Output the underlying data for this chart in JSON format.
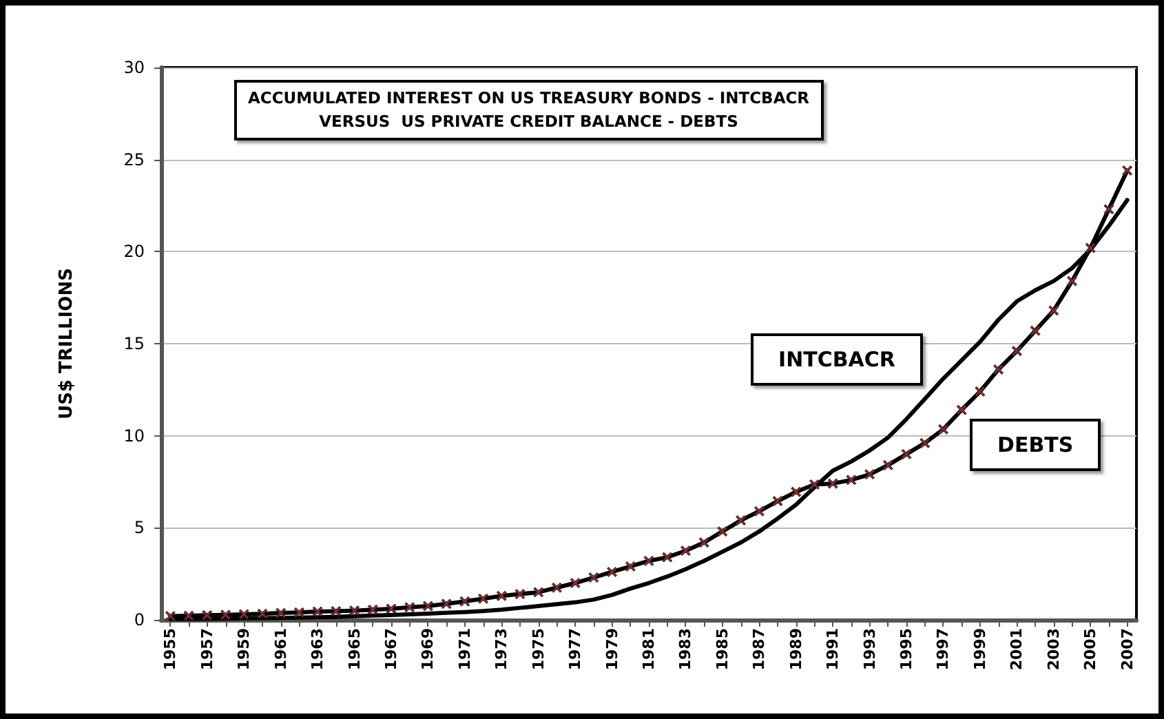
{
  "chart_data": {
    "type": "line",
    "title": "ACCUMULATED INTEREST ON US TREASURY BONDS - INTCBACR\nVERSUS  US PRIVATE CREDIT BALANCE - DEBTS",
    "ylabel": "US$ TRILLIONS",
    "categories": [
      "1955",
      null,
      "1957",
      null,
      "1959",
      null,
      "1961",
      null,
      "1963",
      null,
      "1965",
      null,
      "1967",
      null,
      "1969",
      null,
      "1971",
      null,
      "1973",
      null,
      "1975",
      null,
      "1977",
      null,
      "1979",
      null,
      "1981",
      null,
      "1983",
      null,
      "1985",
      null,
      "1987",
      null,
      "1989",
      null,
      "1991",
      null,
      "1993",
      null,
      "1995",
      null,
      "1997",
      null,
      "1999",
      null,
      "2001",
      null,
      "2003",
      null,
      "2005",
      null,
      "2007"
    ],
    "series": [
      {
        "name": "INTCBACR",
        "color": "#000000",
        "marker": "none",
        "values": [
          0.05,
          0.05,
          0.06,
          0.07,
          0.08,
          0.09,
          0.1,
          0.12,
          0.14,
          0.16,
          0.2,
          0.23,
          0.26,
          0.3,
          0.34,
          0.38,
          0.42,
          0.48,
          0.55,
          0.65,
          0.75,
          0.85,
          0.95,
          1.1,
          1.35,
          1.7,
          2.0,
          2.35,
          2.75,
          3.2,
          3.7,
          4.2,
          4.8,
          5.5,
          6.25,
          7.2,
          8.1,
          8.6,
          9.2,
          9.9,
          10.9,
          12.0,
          13.1,
          14.1,
          15.1,
          16.3,
          17.3,
          17.9,
          18.4,
          19.1,
          20.1,
          21.4,
          22.8
        ]
      },
      {
        "name": "DEBTS",
        "color": "#8b2a2a",
        "marker": "cross",
        "values": [
          0.2,
          0.22,
          0.25,
          0.27,
          0.3,
          0.33,
          0.37,
          0.4,
          0.45,
          0.47,
          0.5,
          0.55,
          0.6,
          0.68,
          0.75,
          0.87,
          1.0,
          1.15,
          1.3,
          1.4,
          1.5,
          1.75,
          2.0,
          2.3,
          2.6,
          2.9,
          3.2,
          3.4,
          3.75,
          4.2,
          4.8,
          5.4,
          5.9,
          6.45,
          6.95,
          7.35,
          7.4,
          7.6,
          7.9,
          8.4,
          9.0,
          9.6,
          10.35,
          11.4,
          12.4,
          13.6,
          14.6,
          15.7,
          16.8,
          18.4,
          20.2,
          22.3,
          24.4
        ]
      }
    ],
    "ylim": [
      0,
      30
    ],
    "yticks": [
      0,
      5,
      10,
      15,
      20,
      25,
      30
    ],
    "grid": "y",
    "legend": false
  }
}
